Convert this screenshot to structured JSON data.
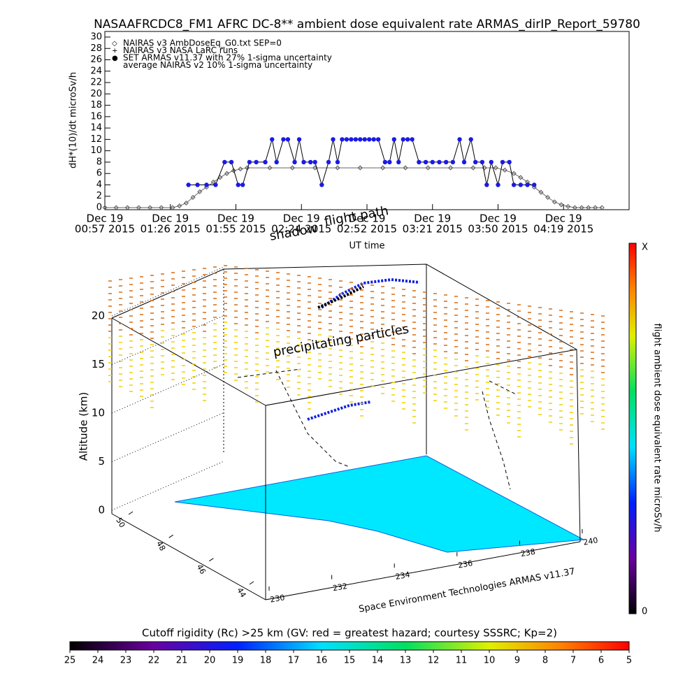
{
  "title": "NASAAFRCDC8_FM1 AFRC DC-8** ambient dose equivalent rate ARMAS_dirIP_Report_59780",
  "chart_data": [
    {
      "type": "line",
      "ylabel": "dH*(10)/dt microSv/h",
      "xlabel": "UT time",
      "xlim": [
        57,
        289
      ],
      "xticks": [
        {
          "value": 57,
          "label": [
            "Dec 19",
            "00:57 2015"
          ]
        },
        {
          "value": 86,
          "label": [
            "Dec 19",
            "01:26 2015"
          ]
        },
        {
          "value": 115,
          "label": [
            "Dec 19",
            "01:55 2015"
          ]
        },
        {
          "value": 144,
          "label": [
            "Dec 19",
            "02:24 2015"
          ]
        },
        {
          "value": 173,
          "label": [
            "Dec 19",
            "02:52 2015"
          ]
        },
        {
          "value": 202,
          "label": [
            "Dec 19",
            "03:21 2015"
          ]
        },
        {
          "value": 231,
          "label": [
            "Dec 19",
            "03:50 2015"
          ]
        },
        {
          "value": 260,
          "label": [
            "Dec 19",
            "04:19 2015"
          ]
        }
      ],
      "ylim": [
        0,
        30
      ],
      "yticks": [
        0,
        2,
        4,
        6,
        8,
        10,
        12,
        14,
        16,
        18,
        20,
        22,
        24,
        26,
        28,
        30
      ],
      "series": [
        {
          "name": "NAIRAS v3 AmbDoseEq_G0.txt SEP=0",
          "color": "#555555",
          "marker": "diamond",
          "x": [
            57,
            62,
            67,
            72,
            77,
            82,
            87,
            90,
            93,
            96,
            99,
            102,
            105,
            108,
            111,
            114,
            117,
            120,
            130,
            140,
            150,
            160,
            170,
            180,
            190,
            200,
            210,
            220,
            225,
            230,
            234,
            238,
            241,
            244,
            247,
            250,
            253,
            256,
            259,
            262,
            265,
            268,
            271,
            274,
            277
          ],
          "values": [
            0,
            0,
            0,
            0,
            0,
            0,
            0,
            0.3,
            0.8,
            1.8,
            2.8,
            3.6,
            4.5,
            5.3,
            6,
            6.5,
            6.8,
            7,
            7,
            7,
            7,
            7,
            7,
            7,
            7,
            7,
            7,
            7,
            7,
            7,
            6.6,
            6,
            5.3,
            4.5,
            3.6,
            2.7,
            1.8,
            1,
            0.5,
            0.2,
            0,
            0,
            0,
            0,
            0
          ]
        },
        {
          "name": "NAIRAS v3 NASA LaRC runs",
          "color": "#000000",
          "marker": "plus",
          "x": [],
          "values": []
        },
        {
          "name": "SET ARMAS v11.37 with 27% 1-sigma uncertainty",
          "color": "#1a1ae6",
          "marker": "circle",
          "x": [
            94,
            98,
            102,
            106,
            110,
            113,
            116,
            118,
            121,
            124,
            128,
            131,
            133,
            136,
            138,
            141,
            143,
            145,
            148,
            150,
            153,
            156,
            158,
            160,
            162,
            164,
            166,
            168,
            170,
            172,
            174,
            176,
            178,
            181,
            183,
            185,
            187,
            189,
            191,
            193,
            196,
            199,
            202,
            205,
            208,
            211,
            214,
            216,
            219,
            221,
            224,
            226,
            228,
            231,
            233,
            236,
            238,
            241,
            244,
            247
          ],
          "values": [
            4,
            4,
            4,
            4,
            8,
            8,
            4,
            4,
            8,
            8,
            8,
            12,
            8,
            12,
            12,
            8,
            12,
            8,
            8,
            8,
            4,
            8,
            12,
            8,
            12,
            12,
            12,
            12,
            12,
            12,
            12,
            12,
            12,
            8,
            8,
            12,
            8,
            12,
            12,
            12,
            8,
            8,
            8,
            8,
            8,
            8,
            12,
            8,
            12,
            8,
            8,
            4,
            8,
            4,
            8,
            8,
            4,
            4,
            4,
            4
          ]
        },
        {
          "name": "average NAIRAS v2 10% 1-sigma uncertainty",
          "color": "#000000",
          "marker": "none",
          "x": [],
          "values": []
        }
      ]
    },
    {
      "type": "surface3d",
      "zlabel": "Altitude (km)",
      "zlim": [
        0,
        20
      ],
      "zticks": [
        0,
        5,
        10,
        15,
        20
      ],
      "ylim": [
        50,
        44
      ],
      "yticks": [
        44,
        46,
        48,
        50
      ],
      "xlim": [
        230,
        240
      ],
      "xticks": [
        230,
        232,
        234,
        236,
        238,
        240
      ],
      "credit": "Space Environment Technologies ARMAS v11.37",
      "annotations": [
        "precipitating particles",
        "flight path",
        "shadow"
      ],
      "colorbar": {
        "label": "flight ambient dose equivalent rate microSv/h",
        "tick_labels": [
          "X",
          "0"
        ]
      },
      "rigidity_colorbar": {
        "title": "Cutoff rigidity (Rc) >25 km (GV: red = greatest hazard; courtesy SSSRC; Kp=2)",
        "lim": [
          25,
          5
        ],
        "ticks": [
          25,
          24,
          23,
          22,
          21,
          20,
          19,
          18,
          17,
          16,
          15,
          14,
          13,
          12,
          11,
          10,
          9,
          8,
          7,
          6,
          5
        ]
      }
    }
  ]
}
